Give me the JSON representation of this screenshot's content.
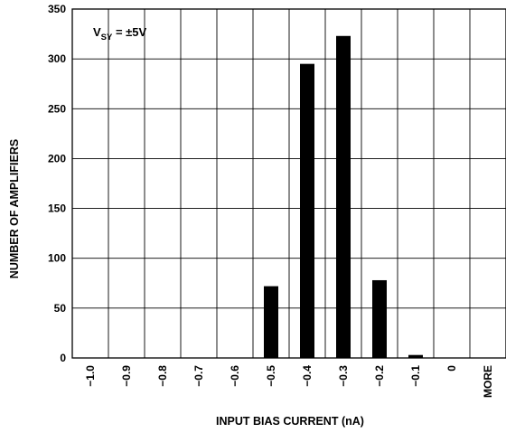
{
  "chart_data": {
    "type": "bar",
    "categories": [
      "−1.0",
      "−0.9",
      "−0.8",
      "−0.7",
      "−0.6",
      "−0.5",
      "−0.4",
      "−0.3",
      "−0.2",
      "−0.1",
      "0",
      "MORE"
    ],
    "series": [
      {
        "values": [
          0,
          0,
          0,
          0,
          0,
          72,
          295,
          323,
          78,
          3,
          0,
          0
        ]
      }
    ],
    "xlabel": "INPUT BIAS CURRENT (nA)",
    "ylabel": "NUMBER OF AMPLIFIERS",
    "ylim": [
      0,
      350
    ],
    "yticks": [
      "0",
      "50",
      "100",
      "150",
      "200",
      "250",
      "300",
      "350"
    ],
    "grid": true,
    "annotation": {
      "main": "V",
      "sub": "SY",
      "rest": " = ±5V",
      "placement": "top-left"
    },
    "colors": {
      "bar": "#000000",
      "grid": "#000000"
    }
  }
}
